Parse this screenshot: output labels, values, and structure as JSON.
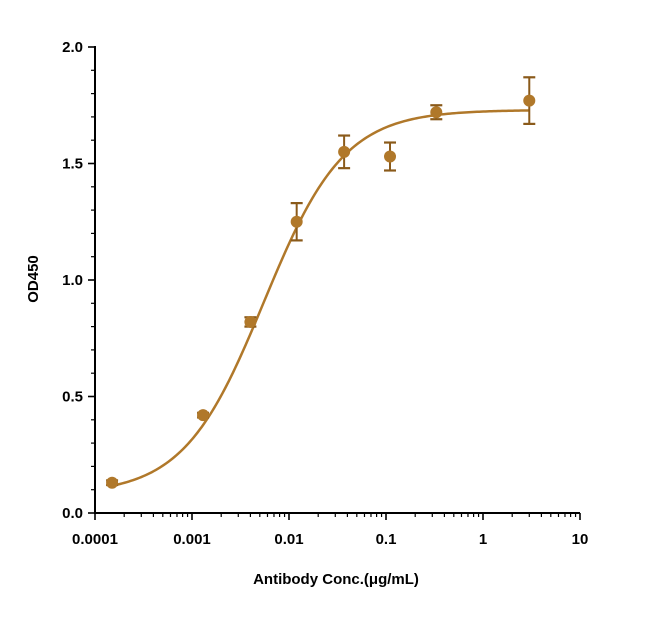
{
  "chart_data": {
    "type": "scatter",
    "xlabel": "Antibody Conc.(μg/mL)",
    "ylabel": "OD450",
    "x_scale": "log",
    "xlim": [
      0.0001,
      10
    ],
    "ylim": [
      0.0,
      2.0
    ],
    "x_ticks": [
      "0.0001",
      "0.001",
      "0.01",
      "0.1",
      "1",
      "10"
    ],
    "y_ticks": [
      "0.0",
      "0.5",
      "1.0",
      "1.5",
      "2.0"
    ],
    "grid": false,
    "color": "#b0782a",
    "error_color": "#8a5a1a",
    "points": [
      {
        "x": 0.00015,
        "y": 0.13,
        "err": 0.01
      },
      {
        "x": 0.0013,
        "y": 0.42,
        "err": 0.01
      },
      {
        "x": 0.004,
        "y": 0.82,
        "err": 0.02
      },
      {
        "x": 0.012,
        "y": 1.25,
        "err": 0.08
      },
      {
        "x": 0.037,
        "y": 1.55,
        "err": 0.07
      },
      {
        "x": 0.11,
        "y": 1.53,
        "err": 0.06
      },
      {
        "x": 0.33,
        "y": 1.72,
        "err": 0.03
      },
      {
        "x": 3.0,
        "y": 1.77,
        "err": 0.1
      }
    ],
    "fit": {
      "type": "4PL",
      "bottom": 0.08,
      "top": 1.73,
      "ec50": 0.0055,
      "hill": 1.05
    }
  }
}
